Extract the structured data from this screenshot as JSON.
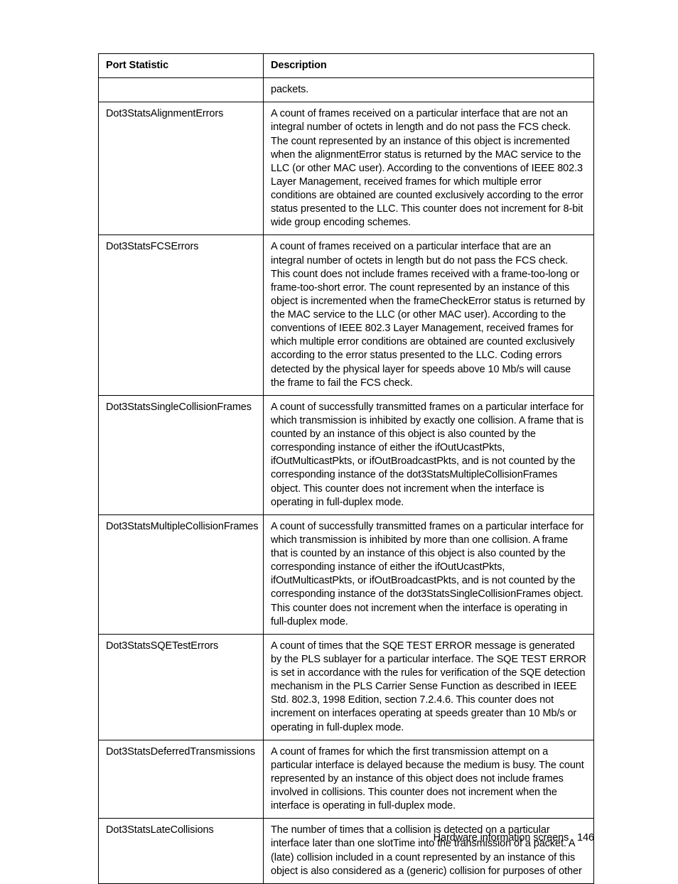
{
  "table": {
    "headers": [
      "Port Statistic",
      "Description"
    ],
    "rows": [
      {
        "stat": "",
        "desc": "packets."
      },
      {
        "stat": "Dot3StatsAlignmentErrors",
        "desc": "A count of frames received on a particular interface that are not an integral number of octets in length and do not pass the FCS check. The count represented by an instance of this object is incremented when the alignmentError status is returned by the MAC service to the LLC (or other MAC user). According to the conventions of IEEE 802.3 Layer Management, received frames for which multiple error conditions are obtained are counted exclusively according to the error status presented to the LLC. This counter does not increment for 8-bit wide group encoding schemes."
      },
      {
        "stat": "Dot3StatsFCSErrors",
        "desc": "A count of frames received on a particular interface that are an integral number of octets in length but do not pass the FCS check. This count does not include frames received with a frame-too-long or frame-too-short error. The count represented by an instance of this object is incremented when the frameCheckError status is returned by the MAC service to the LLC (or other MAC user). According to the conventions of IEEE 802.3 Layer Management, received frames for which multiple error conditions are obtained are counted exclusively according to the error status presented to the LLC. Coding errors detected by the physical layer for speeds above 10 Mb/s will cause the frame to fail the FCS check."
      },
      {
        "stat": "Dot3StatsSingleCollisionFrames",
        "desc": "A count of successfully transmitted frames on a particular interface for which transmission is inhibited by exactly one collision. A frame that is counted by an instance of this object is also counted by the corresponding instance of either the ifOutUcastPkts, ifOutMulticastPkts, or ifOutBroadcastPkts, and is not counted by the corresponding instance of the dot3StatsMultipleCollisionFrames object. This counter does not increment when the interface is operating in full-duplex mode."
      },
      {
        "stat": "Dot3StatsMultipleCollisionFrames",
        "desc": "A count of successfully transmitted frames on a particular interface for which transmission is inhibited by more than one collision. A frame that is counted by an instance of this object is also counted by the corresponding instance of either the ifOutUcastPkts, ifOutMulticastPkts, or ifOutBroadcastPkts, and is not counted by the corresponding instance of the dot3StatsSingleCollisionFrames object. This counter does not increment when the interface is operating in full-duplex mode."
      },
      {
        "stat": "Dot3StatsSQETestErrors",
        "desc": "A count of times that the SQE TEST ERROR message is generated by the PLS sublayer for a particular interface. The SQE TEST ERROR is set in accordance with the rules for verification of the SQE detection mechanism in the PLS Carrier Sense Function as described in IEEE Std. 802.3, 1998 Edition, section 7.2.4.6. This counter does not increment on interfaces operating at speeds greater than 10 Mb/s or operating in full-duplex mode."
      },
      {
        "stat": "Dot3StatsDeferredTransmissions",
        "desc": "A count of frames for which the first transmission attempt on a particular interface is delayed because the medium is busy. The count represented by an instance of this object does not include frames involved in collisions. This counter does not increment when the interface is operating in full-duplex mode."
      },
      {
        "stat": "Dot3StatsLateCollisions",
        "desc": "The number of times that a collision is detected on a particular interface later than one slotTime into the transmission of a packet. A (late) collision included in a count represented by an instance of this object is also considered as a (generic) collision for purposes of other"
      }
    ]
  },
  "footer": {
    "section": "Hardware information screens",
    "page": "146"
  }
}
